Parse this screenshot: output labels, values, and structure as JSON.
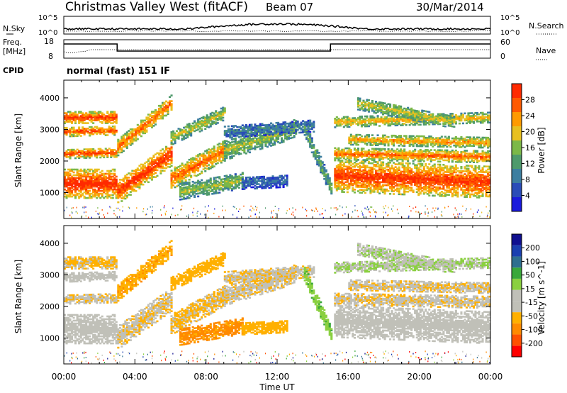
{
  "header": {
    "title": "Christmas Valley West (fitACF)",
    "beam": "Beam 07",
    "date": "30/Mar/2014"
  },
  "status_panels": {
    "nsky_label": "N.Sky",
    "nsky_ticks": [
      "10^5",
      "10^0"
    ],
    "nsearch_label": "N.Search",
    "nsearch_ticks": [
      "10^5",
      "10^0"
    ],
    "freq_label_line1": "Freq.",
    "freq_label_line2": "[MHz]",
    "freq_ticks": [
      "18",
      "8"
    ],
    "nave_label": "Nave",
    "nave_ticks": [
      "60",
      "0"
    ],
    "cpid_label": "CPID",
    "cpid_text": "normal (fast) 151 IF"
  },
  "colors": {
    "power_scale": [
      "#1a1adc",
      "#2a4cb8",
      "#3d7ea0",
      "#4f9a6c",
      "#7cb848",
      "#e8c020",
      "#ff9a00",
      "#ff5a00",
      "#ff2a00"
    ],
    "velocity_scale": [
      "#ff0000",
      "#ff5000",
      "#ff8a00",
      "#ffb000",
      "#c0c0b8",
      "#c0c0b8",
      "#8ad040",
      "#3aa83a",
      "#2f6f8f",
      "#1a3fb0",
      "#101090"
    ]
  },
  "chart_data": [
    {
      "type": "heatmap",
      "name": "power",
      "xlabel": "",
      "ylabel": "Slant Range [km]",
      "x_ticks": [
        "00:00",
        "04:00",
        "08:00",
        "12:00",
        "16:00",
        "20:00",
        "00:00"
      ],
      "xlim_hours": [
        0,
        24
      ],
      "y_ticks": [
        1000,
        2000,
        3000,
        4000
      ],
      "ylim_km": [
        180,
        4560
      ],
      "colorbar_label": "Power [dB]",
      "colorbar_ticks": [
        "4",
        "8",
        "12",
        "16",
        "20",
        "24",
        "28"
      ],
      "colorbar_range": [
        0,
        30
      ]
    },
    {
      "type": "heatmap",
      "name": "velocity",
      "xlabel": "Time UT",
      "ylabel": "Slant Range [km]",
      "x_ticks": [
        "00:00",
        "04:00",
        "08:00",
        "12:00",
        "16:00",
        "20:00",
        "00:00"
      ],
      "xlim_hours": [
        0,
        24
      ],
      "y_ticks": [
        1000,
        2000,
        3000,
        4000
      ],
      "ylim_km": [
        180,
        4560
      ],
      "colorbar_label": "Velocity [m s^-1]",
      "colorbar_ticks": [
        "200",
        "100",
        "50",
        "15",
        "-15",
        "-50",
        "-100",
        "-200"
      ],
      "colorbar_range": [
        -250,
        250
      ]
    }
  ]
}
